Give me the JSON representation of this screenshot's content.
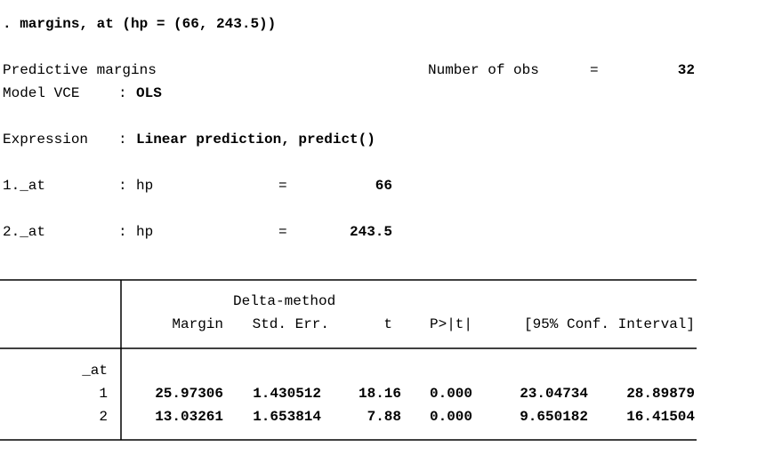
{
  "command": ". margins, at (hp = (66, 243.5))",
  "header": {
    "title": "Predictive margins",
    "nobs_label": "Number of obs",
    "nobs_eq": "=",
    "nobs": "32",
    "vce_label": "Model VCE",
    "vce_sep": ":",
    "vce": "OLS",
    "expression_label": "Expression",
    "expression_sep": ":",
    "expression": "Linear prediction, predict()"
  },
  "at_settings": [
    {
      "label": "1._at",
      "sep": ":",
      "var": "hp",
      "eq": "=",
      "value": "66"
    },
    {
      "label": "2._at",
      "sep": ":",
      "var": "hp",
      "eq": "=",
      "value": "243.5"
    }
  ],
  "table": {
    "super_header": "Delta-method",
    "columns": [
      "Margin",
      "Std. Err.",
      "t",
      "P>|t|",
      "[95% Conf. Interval]"
    ],
    "group": "_at",
    "rows": [
      [
        "1",
        "25.97306",
        "1.430512",
        "18.16",
        "0.000",
        "23.04734",
        "28.89879"
      ],
      [
        "2",
        "13.03261",
        "1.653814",
        "7.88",
        "0.000",
        "9.650182",
        "16.41504"
      ]
    ]
  }
}
